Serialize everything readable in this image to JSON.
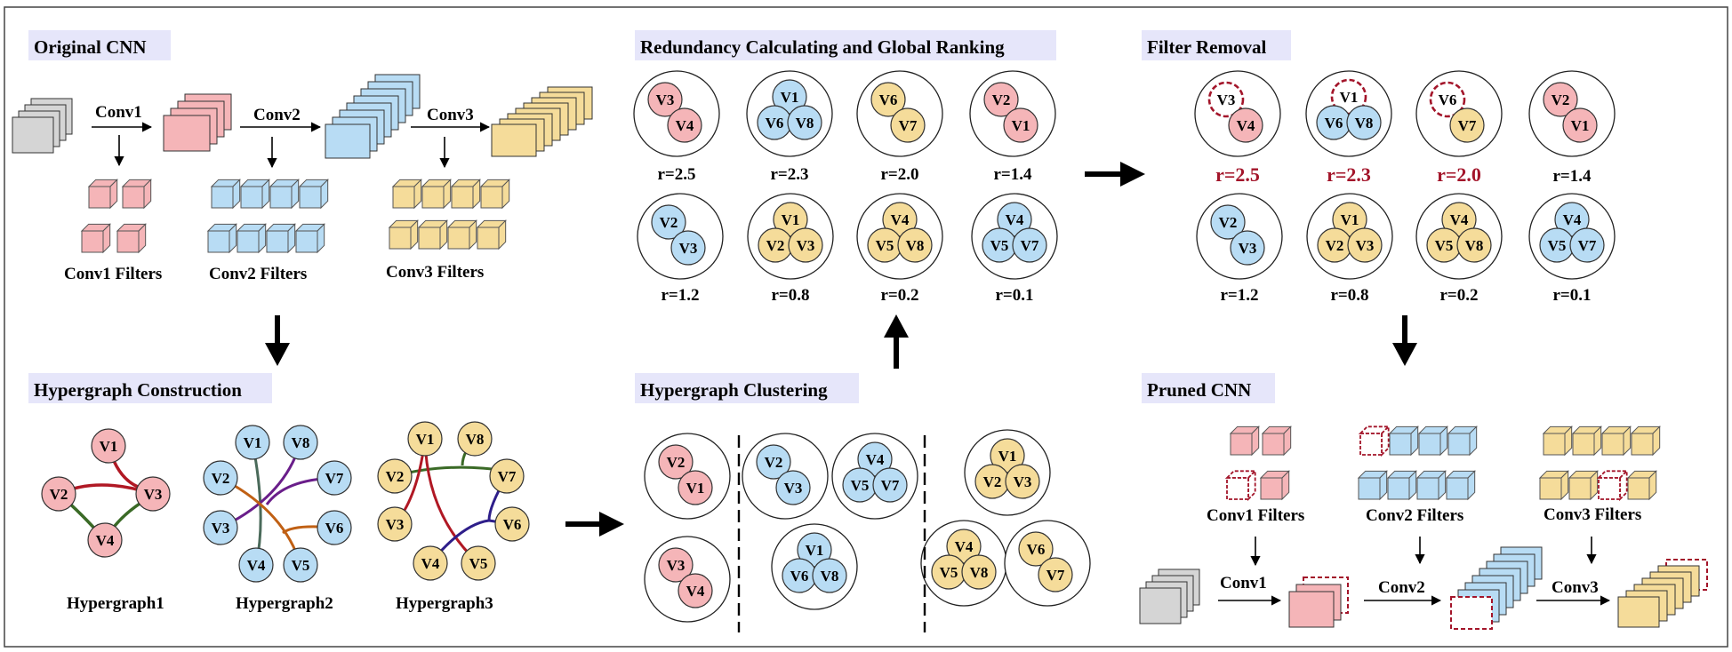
{
  "colors": {
    "pink": "#f5b5b8",
    "blue": "#b8dcf4",
    "yellow": "#f5dc9a",
    "gray": "#d5d5d5",
    "title_bg": "#e6e6fa",
    "highlight": "#a3152a",
    "edge_red": "#b01824",
    "edge_green": "#3a6a26",
    "edge_purple": "#6a1e8a",
    "edge_orange": "#c06014",
    "edge_slate": "#4a6a5a",
    "edge_navy": "#2e1e8a"
  },
  "sections": {
    "original_cnn": "Original CNN",
    "redundancy": "Redundancy Calculating and Global Ranking",
    "filter_removal": "Filter Removal",
    "hypergraph_construction": "Hypergraph Construction",
    "hypergraph_clustering": "Hypergraph Clustering",
    "pruned_cnn": "Pruned CNN"
  },
  "layers": {
    "conv1": "Conv1",
    "conv2": "Conv2",
    "conv3": "Conv3",
    "conv1_filters": "Conv1 Filters",
    "conv2_filters": "Conv2 Filters",
    "conv3_filters": "Conv3 Filters"
  },
  "hypergraphs": {
    "h1": "Hypergraph1",
    "h2": "Hypergraph2",
    "h3": "Hypergraph3"
  },
  "ranking": [
    {
      "nodes": [
        {
          "l": "V3",
          "c": "pink"
        },
        {
          "l": "V4",
          "c": "pink"
        }
      ],
      "r": "r=2.5"
    },
    {
      "nodes": [
        {
          "l": "V1",
          "c": "blue"
        },
        {
          "l": "V6",
          "c": "blue"
        },
        {
          "l": "V8",
          "c": "blue"
        }
      ],
      "r": "r=2.3"
    },
    {
      "nodes": [
        {
          "l": "V6",
          "c": "yellow"
        },
        {
          "l": "V7",
          "c": "yellow"
        }
      ],
      "r": "r=2.0"
    },
    {
      "nodes": [
        {
          "l": "V2",
          "c": "pink"
        },
        {
          "l": "V1",
          "c": "pink"
        }
      ],
      "r": "r=1.4"
    },
    {
      "nodes": [
        {
          "l": "V2",
          "c": "blue"
        },
        {
          "l": "V3",
          "c": "blue"
        }
      ],
      "r": "r=1.2"
    },
    {
      "nodes": [
        {
          "l": "V1",
          "c": "yellow"
        },
        {
          "l": "V2",
          "c": "yellow"
        },
        {
          "l": "V3",
          "c": "yellow"
        }
      ],
      "r": "r=0.8"
    },
    {
      "nodes": [
        {
          "l": "V4",
          "c": "yellow"
        },
        {
          "l": "V5",
          "c": "yellow"
        },
        {
          "l": "V8",
          "c": "yellow"
        }
      ],
      "r": "r=0.2"
    },
    {
      "nodes": [
        {
          "l": "V4",
          "c": "blue"
        },
        {
          "l": "V5",
          "c": "blue"
        },
        {
          "l": "V7",
          "c": "blue"
        }
      ],
      "r": "r=0.1"
    }
  ],
  "clustering": [
    {
      "nodes": [
        {
          "l": "V2",
          "c": "pink"
        },
        {
          "l": "V1",
          "c": "pink"
        }
      ]
    },
    {
      "nodes": [
        {
          "l": "V3",
          "c": "pink"
        },
        {
          "l": "V4",
          "c": "pink"
        }
      ]
    },
    {
      "nodes": [
        {
          "l": "V2",
          "c": "blue"
        },
        {
          "l": "V3",
          "c": "blue"
        }
      ]
    },
    {
      "nodes": [
        {
          "l": "V4",
          "c": "blue"
        },
        {
          "l": "V5",
          "c": "blue"
        },
        {
          "l": "V7",
          "c": "blue"
        }
      ]
    },
    {
      "nodes": [
        {
          "l": "V1",
          "c": "blue"
        },
        {
          "l": "V6",
          "c": "blue"
        },
        {
          "l": "V8",
          "c": "blue"
        }
      ]
    },
    {
      "nodes": [
        {
          "l": "V1",
          "c": "yellow"
        },
        {
          "l": "V2",
          "c": "yellow"
        },
        {
          "l": "V3",
          "c": "yellow"
        }
      ]
    },
    {
      "nodes": [
        {
          "l": "V4",
          "c": "yellow"
        },
        {
          "l": "V5",
          "c": "yellow"
        },
        {
          "l": "V8",
          "c": "yellow"
        }
      ]
    },
    {
      "nodes": [
        {
          "l": "V6",
          "c": "yellow"
        },
        {
          "l": "V7",
          "c": "yellow"
        }
      ]
    }
  ],
  "h1_nodes": [
    "V1",
    "V2",
    "V3",
    "V4"
  ],
  "h2_nodes": [
    "V1",
    "V8",
    "V2",
    "V7",
    "V3",
    "V6",
    "V4",
    "V5"
  ],
  "h3_nodes": [
    "V1",
    "V8",
    "V2",
    "V7",
    "V3",
    "V6",
    "V4",
    "V5"
  ]
}
